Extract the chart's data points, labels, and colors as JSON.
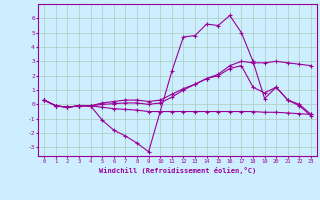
{
  "background_color": "#cceeff",
  "grid_color": "#aaccbb",
  "line_color": "#990099",
  "xlabel": "Windchill (Refroidissement éolien,°C)",
  "xlim": [
    -0.5,
    23.5
  ],
  "ylim": [
    -3.6,
    7.0
  ],
  "xticks": [
    0,
    1,
    2,
    3,
    4,
    5,
    6,
    7,
    8,
    9,
    10,
    11,
    12,
    13,
    14,
    15,
    16,
    17,
    18,
    19,
    20,
    21,
    22,
    23
  ],
  "yticks": [
    -3,
    -2,
    -1,
    0,
    1,
    2,
    3,
    4,
    5,
    6
  ],
  "lines": [
    {
      "x": [
        0,
        1,
        2,
        3,
        4,
        5,
        6,
        7,
        8,
        9,
        10,
        11,
        12,
        13,
        14,
        15,
        16,
        17,
        18,
        19,
        20,
        21,
        22,
        23
      ],
      "y": [
        0.3,
        -0.1,
        -0.2,
        -0.1,
        -0.1,
        -1.1,
        -1.8,
        -2.2,
        -2.7,
        -3.3,
        -0.5,
        2.3,
        4.7,
        4.8,
        5.6,
        5.5,
        6.2,
        5.0,
        3.0,
        0.4,
        1.2,
        0.3,
        -0.1,
        -0.8
      ]
    },
    {
      "x": [
        0,
        1,
        2,
        3,
        4,
        5,
        6,
        7,
        8,
        9,
        10,
        11,
        12,
        13,
        14,
        15,
        16,
        17,
        18,
        19,
        20,
        21,
        22,
        23
      ],
      "y": [
        0.3,
        -0.1,
        -0.2,
        -0.1,
        -0.1,
        0.1,
        0.2,
        0.3,
        0.3,
        0.2,
        0.3,
        0.7,
        1.1,
        1.4,
        1.8,
        2.1,
        2.7,
        3.0,
        2.9,
        2.9,
        3.0,
        2.9,
        2.8,
        2.7
      ]
    },
    {
      "x": [
        0,
        1,
        2,
        3,
        4,
        5,
        6,
        7,
        8,
        9,
        10,
        11,
        12,
        13,
        14,
        15,
        16,
        17,
        18,
        19,
        20,
        21,
        22,
        23
      ],
      "y": [
        0.3,
        -0.1,
        -0.2,
        -0.1,
        -0.1,
        -0.2,
        -0.3,
        -0.35,
        -0.4,
        -0.5,
        -0.5,
        -0.5,
        -0.5,
        -0.5,
        -0.5,
        -0.5,
        -0.5,
        -0.5,
        -0.5,
        -0.55,
        -0.55,
        -0.6,
        -0.65,
        -0.7
      ]
    },
    {
      "x": [
        0,
        1,
        2,
        3,
        4,
        5,
        6,
        7,
        8,
        9,
        10,
        11,
        12,
        13,
        14,
        15,
        16,
        17,
        18,
        19,
        20,
        21,
        22,
        23
      ],
      "y": [
        0.3,
        -0.1,
        -0.2,
        -0.1,
        -0.1,
        0.0,
        0.05,
        0.1,
        0.1,
        0.0,
        0.1,
        0.5,
        1.0,
        1.4,
        1.8,
        2.0,
        2.5,
        2.7,
        1.2,
        0.8,
        1.2,
        0.3,
        0.0,
        -0.7
      ]
    }
  ]
}
